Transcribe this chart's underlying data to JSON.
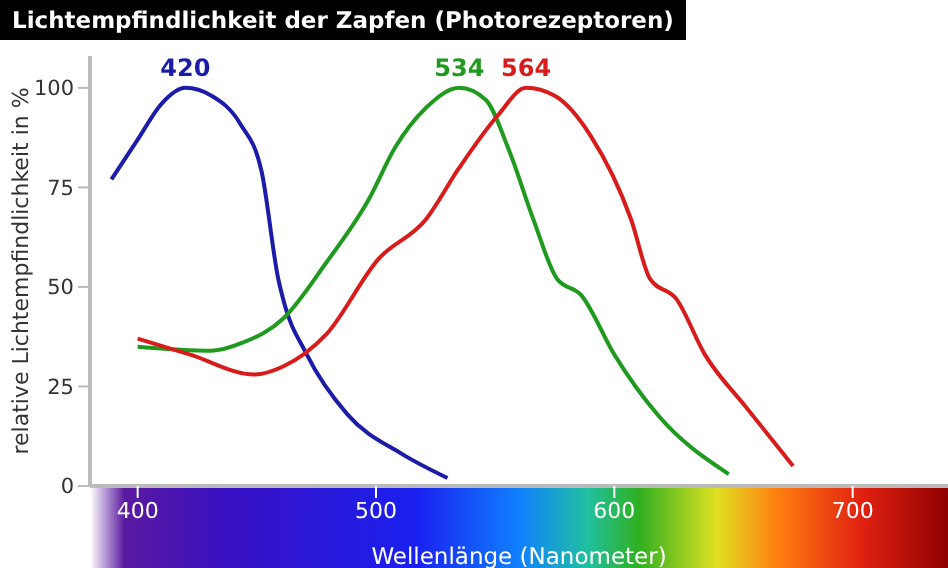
{
  "chart_data": {
    "type": "line",
    "title": "Lichtempfindlichkeit der Zapfen (Photorezeptoren)",
    "xlabel": "Wellenlänge (Nanometer)",
    "ylabel": "relative Lichtempfindlichkeit in %",
    "xlim": [
      380,
      740
    ],
    "xticks": [
      400,
      500,
      600,
      700
    ],
    "ylim": [
      0,
      108
    ],
    "yticks": [
      0,
      25,
      50,
      75,
      100
    ],
    "grid": false,
    "legend": false,
    "marker": "none",
    "line_style": "solid",
    "series": [
      {
        "color": "#1c1ca8",
        "x": [
          389,
          400,
          410,
          420,
          431,
          443,
          452,
          459,
          461,
          471,
          488,
          511,
          530
        ],
        "values": [
          77,
          87,
          96,
          100,
          98,
          91,
          79,
          52,
          47,
          33,
          18,
          8,
          2
        ]
      },
      {
        "color": "#1f9a1f",
        "x": [
          400,
          431,
          444,
          461,
          479,
          497,
          508,
          521,
          535,
          546,
          556,
          566,
          576,
          586,
          600,
          618,
          648
        ],
        "values": [
          35,
          34,
          36,
          42,
          56,
          72,
          85,
          95,
          100,
          97,
          84,
          67,
          52,
          48,
          33,
          18,
          3
        ]
      },
      {
        "color": "#d81c1c",
        "x": [
          400,
          422,
          449,
          461,
          479,
          501,
          521,
          535,
          551,
          563,
          575,
          590,
          607,
          615,
          626,
          638,
          655,
          675
        ],
        "values": [
          37,
          33,
          28,
          30,
          38,
          57,
          67,
          80,
          93,
          100,
          98,
          88,
          67,
          52,
          47,
          33,
          20,
          5
        ]
      }
    ],
    "annotations": [
      {
        "text": "420",
        "x": 420,
        "y": 100
      },
      {
        "text": "534",
        "x": 535,
        "y": 100
      },
      {
        "text": "564",
        "x": 563,
        "y": 100
      }
    ]
  }
}
